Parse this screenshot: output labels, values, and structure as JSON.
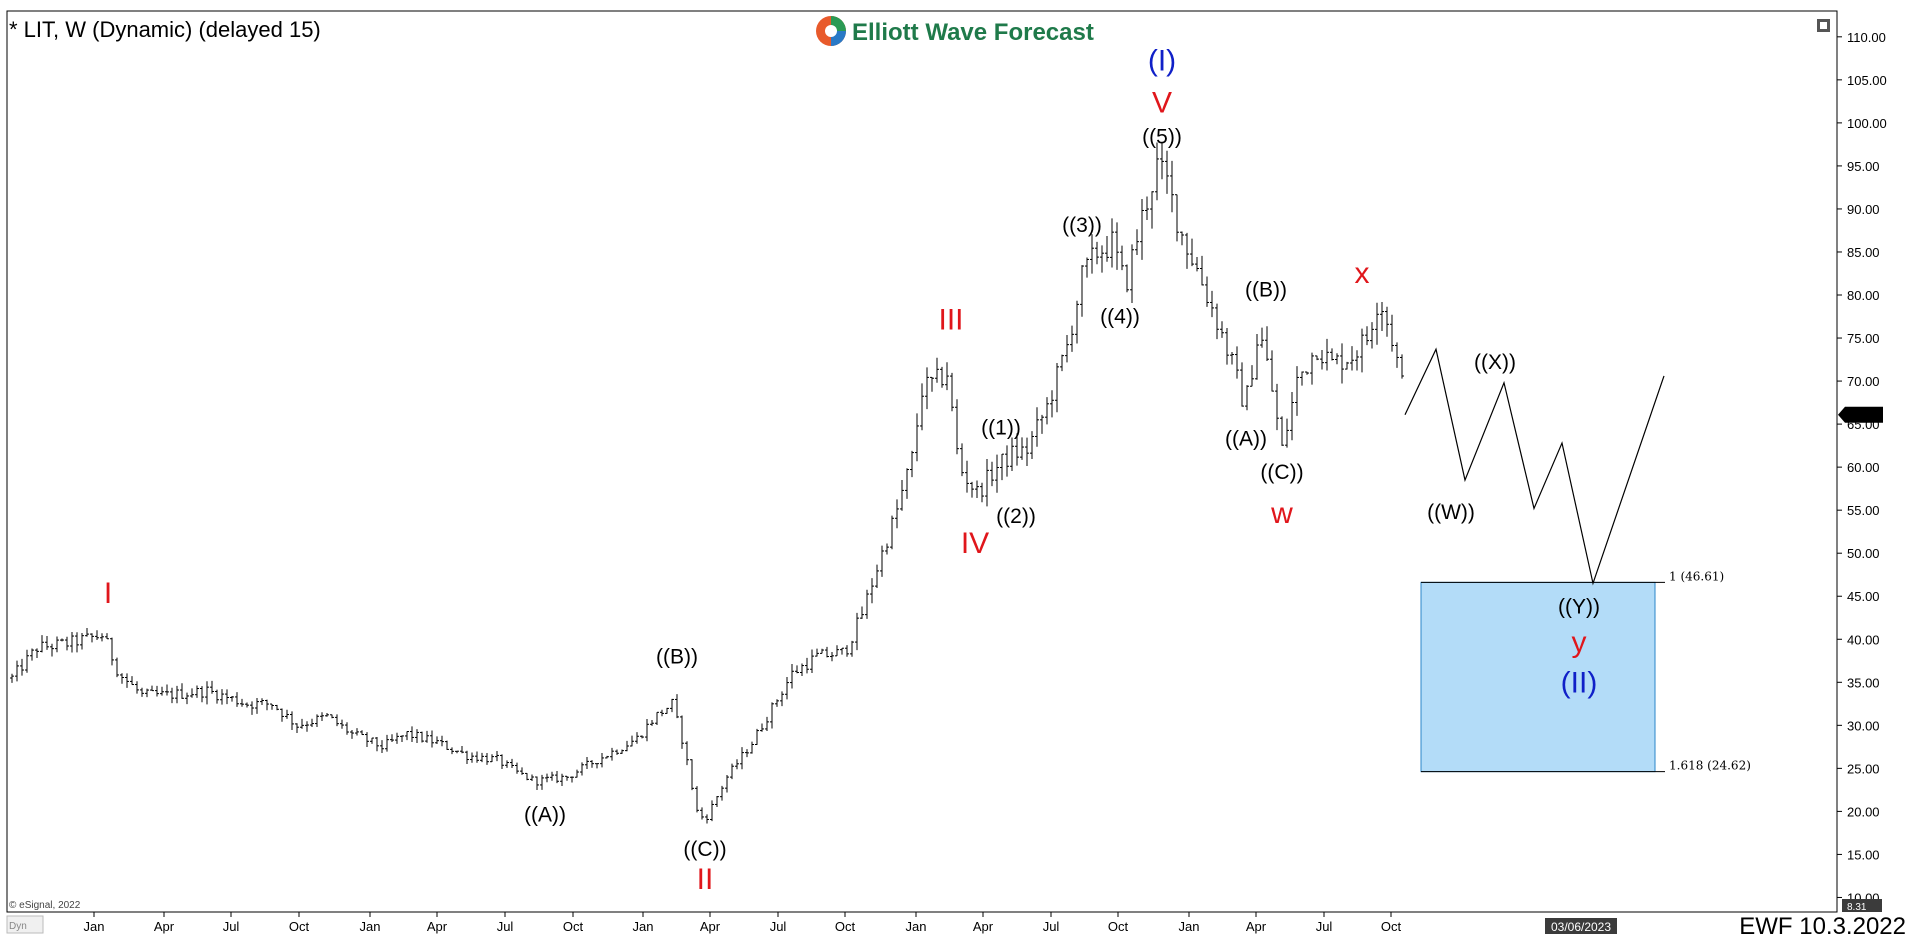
{
  "chart_data": {
    "type": "ohlc",
    "title": "* LIT, W (Dynamic) (delayed 15)",
    "watermark": "Elliott Wave Forecast",
    "copyright": "© eSignal, 2022",
    "corner_label": "Dyn",
    "footer_label": "EWF 10.3.2022",
    "date_badge": "03/06/2023",
    "last_price": "66.09",
    "axis_bottom_value": "8.31",
    "ylim": [
      8.31,
      113
    ],
    "xlim": [
      0,
      1800
    ],
    "yticks": [
      "110.00",
      "105.00",
      "100.00",
      "95.00",
      "90.00",
      "85.00",
      "80.00",
      "75.00",
      "70.00",
      "65.00",
      "60.00",
      "55.00",
      "50.00",
      "45.00",
      "40.00",
      "35.00",
      "30.00",
      "25.00",
      "20.00",
      "15.00",
      "10.00"
    ],
    "xticks": [
      {
        "t": 87,
        "label": "Jan"
      },
      {
        "t": 157,
        "label": "Apr"
      },
      {
        "t": 224,
        "label": "Jul"
      },
      {
        "t": 292,
        "label": "Oct"
      },
      {
        "t": 363,
        "label": "Jan"
      },
      {
        "t": 430,
        "label": "Apr"
      },
      {
        "t": 498,
        "label": "Jul"
      },
      {
        "t": 566,
        "label": "Oct"
      },
      {
        "t": 636,
        "label": "Jan"
      },
      {
        "t": 703,
        "label": "Apr"
      },
      {
        "t": 771,
        "label": "Jul"
      },
      {
        "t": 838,
        "label": "Oct"
      },
      {
        "t": 909,
        "label": "Jan"
      },
      {
        "t": 976,
        "label": "Apr"
      },
      {
        "t": 1044,
        "label": "Jul"
      },
      {
        "t": 1111,
        "label": "Oct"
      },
      {
        "t": 1182,
        "label": "Jan"
      },
      {
        "t": 1249,
        "label": "Apr"
      },
      {
        "t": 1317,
        "label": "Jul"
      },
      {
        "t": 1384,
        "label": "Oct"
      }
    ],
    "price_anchors": [
      {
        "t": 5,
        "p": 35.5
      },
      {
        "t": 30,
        "p": 39
      },
      {
        "t": 60,
        "p": 39.5
      },
      {
        "t": 96,
        "p": 40.5
      },
      {
        "t": 112,
        "p": 36
      },
      {
        "t": 135,
        "p": 33.5
      },
      {
        "t": 160,
        "p": 33.5
      },
      {
        "t": 200,
        "p": 34
      },
      {
        "t": 240,
        "p": 32.5
      },
      {
        "t": 265,
        "p": 32.5
      },
      {
        "t": 290,
        "p": 30
      },
      {
        "t": 320,
        "p": 31
      },
      {
        "t": 345,
        "p": 29
      },
      {
        "t": 375,
        "p": 27.5
      },
      {
        "t": 400,
        "p": 29
      },
      {
        "t": 430,
        "p": 28
      },
      {
        "t": 460,
        "p": 26.5
      },
      {
        "t": 490,
        "p": 26
      },
      {
        "t": 510,
        "p": 24.5
      },
      {
        "t": 528,
        "p": 23.5
      },
      {
        "t": 560,
        "p": 24
      },
      {
        "t": 590,
        "p": 26
      },
      {
        "t": 615,
        "p": 27.5
      },
      {
        "t": 630,
        "p": 28.5
      },
      {
        "t": 648,
        "p": 31
      },
      {
        "t": 665,
        "p": 32.5
      },
      {
        "t": 676,
        "p": 28
      },
      {
        "t": 690,
        "p": 20
      },
      {
        "t": 698,
        "p": 19
      },
      {
        "t": 720,
        "p": 24
      },
      {
        "t": 745,
        "p": 28
      },
      {
        "t": 765,
        "p": 32
      },
      {
        "t": 785,
        "p": 36
      },
      {
        "t": 810,
        "p": 38
      },
      {
        "t": 838,
        "p": 38.5
      },
      {
        "t": 855,
        "p": 43
      },
      {
        "t": 872,
        "p": 49
      },
      {
        "t": 890,
        "p": 55
      },
      {
        "t": 905,
        "p": 61
      },
      {
        "t": 915,
        "p": 69
      },
      {
        "t": 930,
        "p": 70
      },
      {
        "t": 940,
        "p": 71
      },
      {
        "t": 952,
        "p": 60
      },
      {
        "t": 970,
        "p": 57
      },
      {
        "t": 990,
        "p": 60
      },
      {
        "t": 1005,
        "p": 61.5
      },
      {
        "t": 1020,
        "p": 62
      },
      {
        "t": 1040,
        "p": 67
      },
      {
        "t": 1060,
        "p": 74
      },
      {
        "t": 1075,
        "p": 82
      },
      {
        "t": 1090,
        "p": 85
      },
      {
        "t": 1105,
        "p": 86
      },
      {
        "t": 1118,
        "p": 81
      },
      {
        "t": 1135,
        "p": 89
      },
      {
        "t": 1150,
        "p": 95
      },
      {
        "t": 1160,
        "p": 93
      },
      {
        "t": 1175,
        "p": 87
      },
      {
        "t": 1190,
        "p": 83
      },
      {
        "t": 1210,
        "p": 77
      },
      {
        "t": 1225,
        "p": 72
      },
      {
        "t": 1238,
        "p": 67
      },
      {
        "t": 1252,
        "p": 76
      },
      {
        "t": 1262,
        "p": 71
      },
      {
        "t": 1275,
        "p": 62
      },
      {
        "t": 1290,
        "p": 70
      },
      {
        "t": 1310,
        "p": 74
      },
      {
        "t": 1325,
        "p": 72
      },
      {
        "t": 1345,
        "p": 73
      },
      {
        "t": 1360,
        "p": 75
      },
      {
        "t": 1372,
        "p": 80
      },
      {
        "t": 1385,
        "p": 75
      },
      {
        "t": 1398,
        "p": 68
      }
    ],
    "projection_path": [
      {
        "t": 1398,
        "p": 66.09
      },
      {
        "t": 1429,
        "p": 73.7
      },
      {
        "t": 1458,
        "p": 58.5
      },
      {
        "t": 1497,
        "p": 69.8
      },
      {
        "t": 1527,
        "p": 55.2
      },
      {
        "t": 1555,
        "p": 62.8
      },
      {
        "t": 1586,
        "p": 46.5
      },
      {
        "t": 1657,
        "p": 70.6
      }
    ],
    "target_box": {
      "t_start": 1414,
      "t_end": 1648,
      "p_top": 46.61,
      "p_bottom": 24.62,
      "fill": "#b3dcf8",
      "stroke": "#2b86c8"
    },
    "fib_levels": [
      {
        "label": "1 (46.61)",
        "p": 46.61
      },
      {
        "label": "1.618 (24.62)",
        "p": 24.62
      }
    ],
    "wave_labels": [
      {
        "text": "I",
        "t": 101,
        "p": 44.2,
        "color": "#e0161b",
        "size": 30
      },
      {
        "text": "((A))",
        "t": 538,
        "p": 18.8,
        "color": "#000000",
        "size": 21
      },
      {
        "text": "((B))",
        "t": 670,
        "p": 37.2,
        "color": "#000000",
        "size": 21
      },
      {
        "text": "((C))",
        "t": 698,
        "p": 14.8,
        "color": "#000000",
        "size": 21
      },
      {
        "text": "II",
        "t": 698,
        "p": 11.0,
        "color": "#e0161b",
        "size": 30
      },
      {
        "text": "III",
        "t": 944,
        "p": 76.0,
        "color": "#e0161b",
        "size": 30
      },
      {
        "text": "((1))",
        "t": 994,
        "p": 63.8,
        "color": "#000000",
        "size": 21
      },
      {
        "text": "((2))",
        "t": 1009,
        "p": 53.5,
        "color": "#000000",
        "size": 21
      },
      {
        "text": "IV",
        "t": 968,
        "p": 50.0,
        "color": "#e0161b",
        "size": 30
      },
      {
        "text": "((3))",
        "t": 1075,
        "p": 87.3,
        "color": "#000000",
        "size": 21
      },
      {
        "text": "((4))",
        "t": 1113,
        "p": 76.7,
        "color": "#000000",
        "size": 21
      },
      {
        "text": "((5))",
        "t": 1155,
        "p": 97.6,
        "color": "#000000",
        "size": 21
      },
      {
        "text": "V",
        "t": 1155,
        "p": 101.2,
        "color": "#e0161b",
        "size": 30
      },
      {
        "text": "(I)",
        "t": 1155,
        "p": 106.1,
        "color": "#1020c8",
        "size": 30
      },
      {
        "text": "((B))",
        "t": 1259,
        "p": 79.8,
        "color": "#000000",
        "size": 21
      },
      {
        "text": "((A))",
        "t": 1239,
        "p": 62.5,
        "color": "#000000",
        "size": 21
      },
      {
        "text": "((C))",
        "t": 1275,
        "p": 58.6,
        "color": "#000000",
        "size": 21
      },
      {
        "text": "w",
        "t": 1275,
        "p": 53.5,
        "color": "#e0161b",
        "size": 30
      },
      {
        "text": "x",
        "t": 1355,
        "p": 81.4,
        "color": "#e0161b",
        "size": 30
      },
      {
        "text": "((X))",
        "t": 1488,
        "p": 71.4,
        "color": "#000000",
        "size": 21
      },
      {
        "text": "((W))",
        "t": 1444,
        "p": 54.0,
        "color": "#000000",
        "size": 21
      },
      {
        "text": "((Y))",
        "t": 1572,
        "p": 43.0,
        "color": "#000000",
        "size": 21
      },
      {
        "text": "y",
        "t": 1572,
        "p": 38.5,
        "color": "#e0161b",
        "size": 30
      },
      {
        "text": "(II)",
        "t": 1572,
        "p": 33.8,
        "color": "#1020c8",
        "size": 30
      }
    ]
  }
}
